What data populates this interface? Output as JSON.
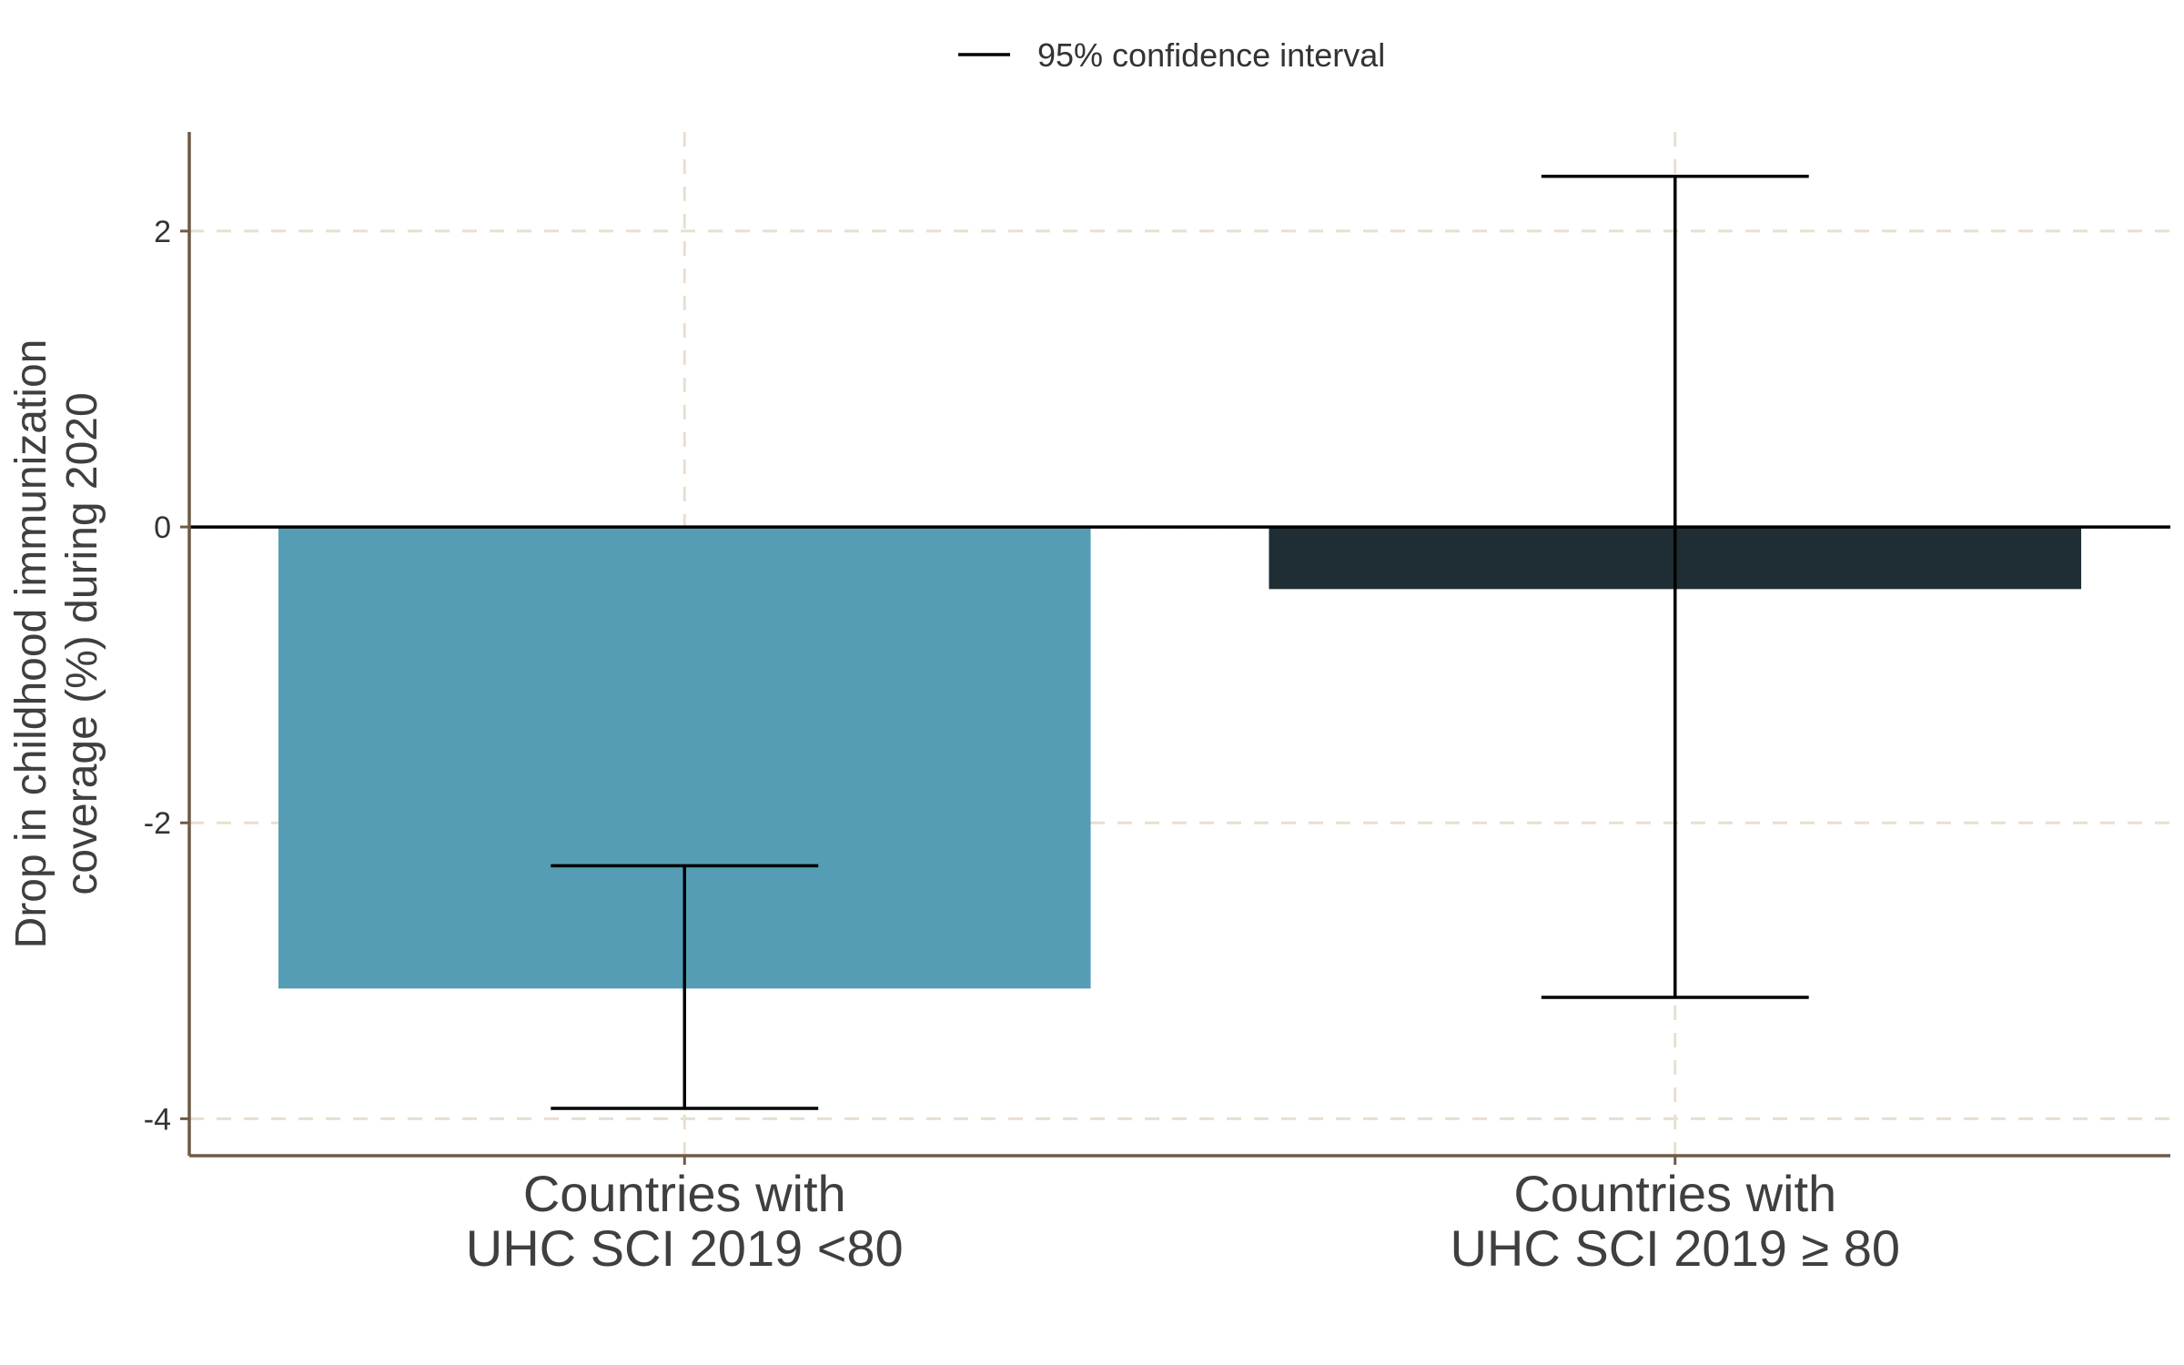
{
  "chart_data": {
    "type": "bar",
    "categories": [
      [
        "Countries with",
        "UHC SCI 2019 <80"
      ],
      [
        "Countries with",
        "UHC SCI 2019 ≥ 80"
      ]
    ],
    "values": [
      -3.12,
      -0.42
    ],
    "error_bars": [
      {
        "lower": -3.93,
        "upper": -2.29
      },
      {
        "lower": -3.18,
        "upper": 2.37
      }
    ],
    "bar_colors": [
      "#559DB5",
      "#1F2D34"
    ],
    "ylabel_lines": [
      "Drop in childhood immunization",
      "coverage (%) during 2020"
    ],
    "xlabel": "",
    "yticks": [
      2,
      0,
      -2,
      -4
    ],
    "ylim": [
      -4.25,
      2.67
    ],
    "legend": {
      "label": "95% confidence interval",
      "position": "top-center"
    },
    "grid": true,
    "colors": {
      "axis": "#6E5A46",
      "grid": "#E8DFD0",
      "zero_line": "#000000",
      "error_bar": "#000000"
    }
  }
}
